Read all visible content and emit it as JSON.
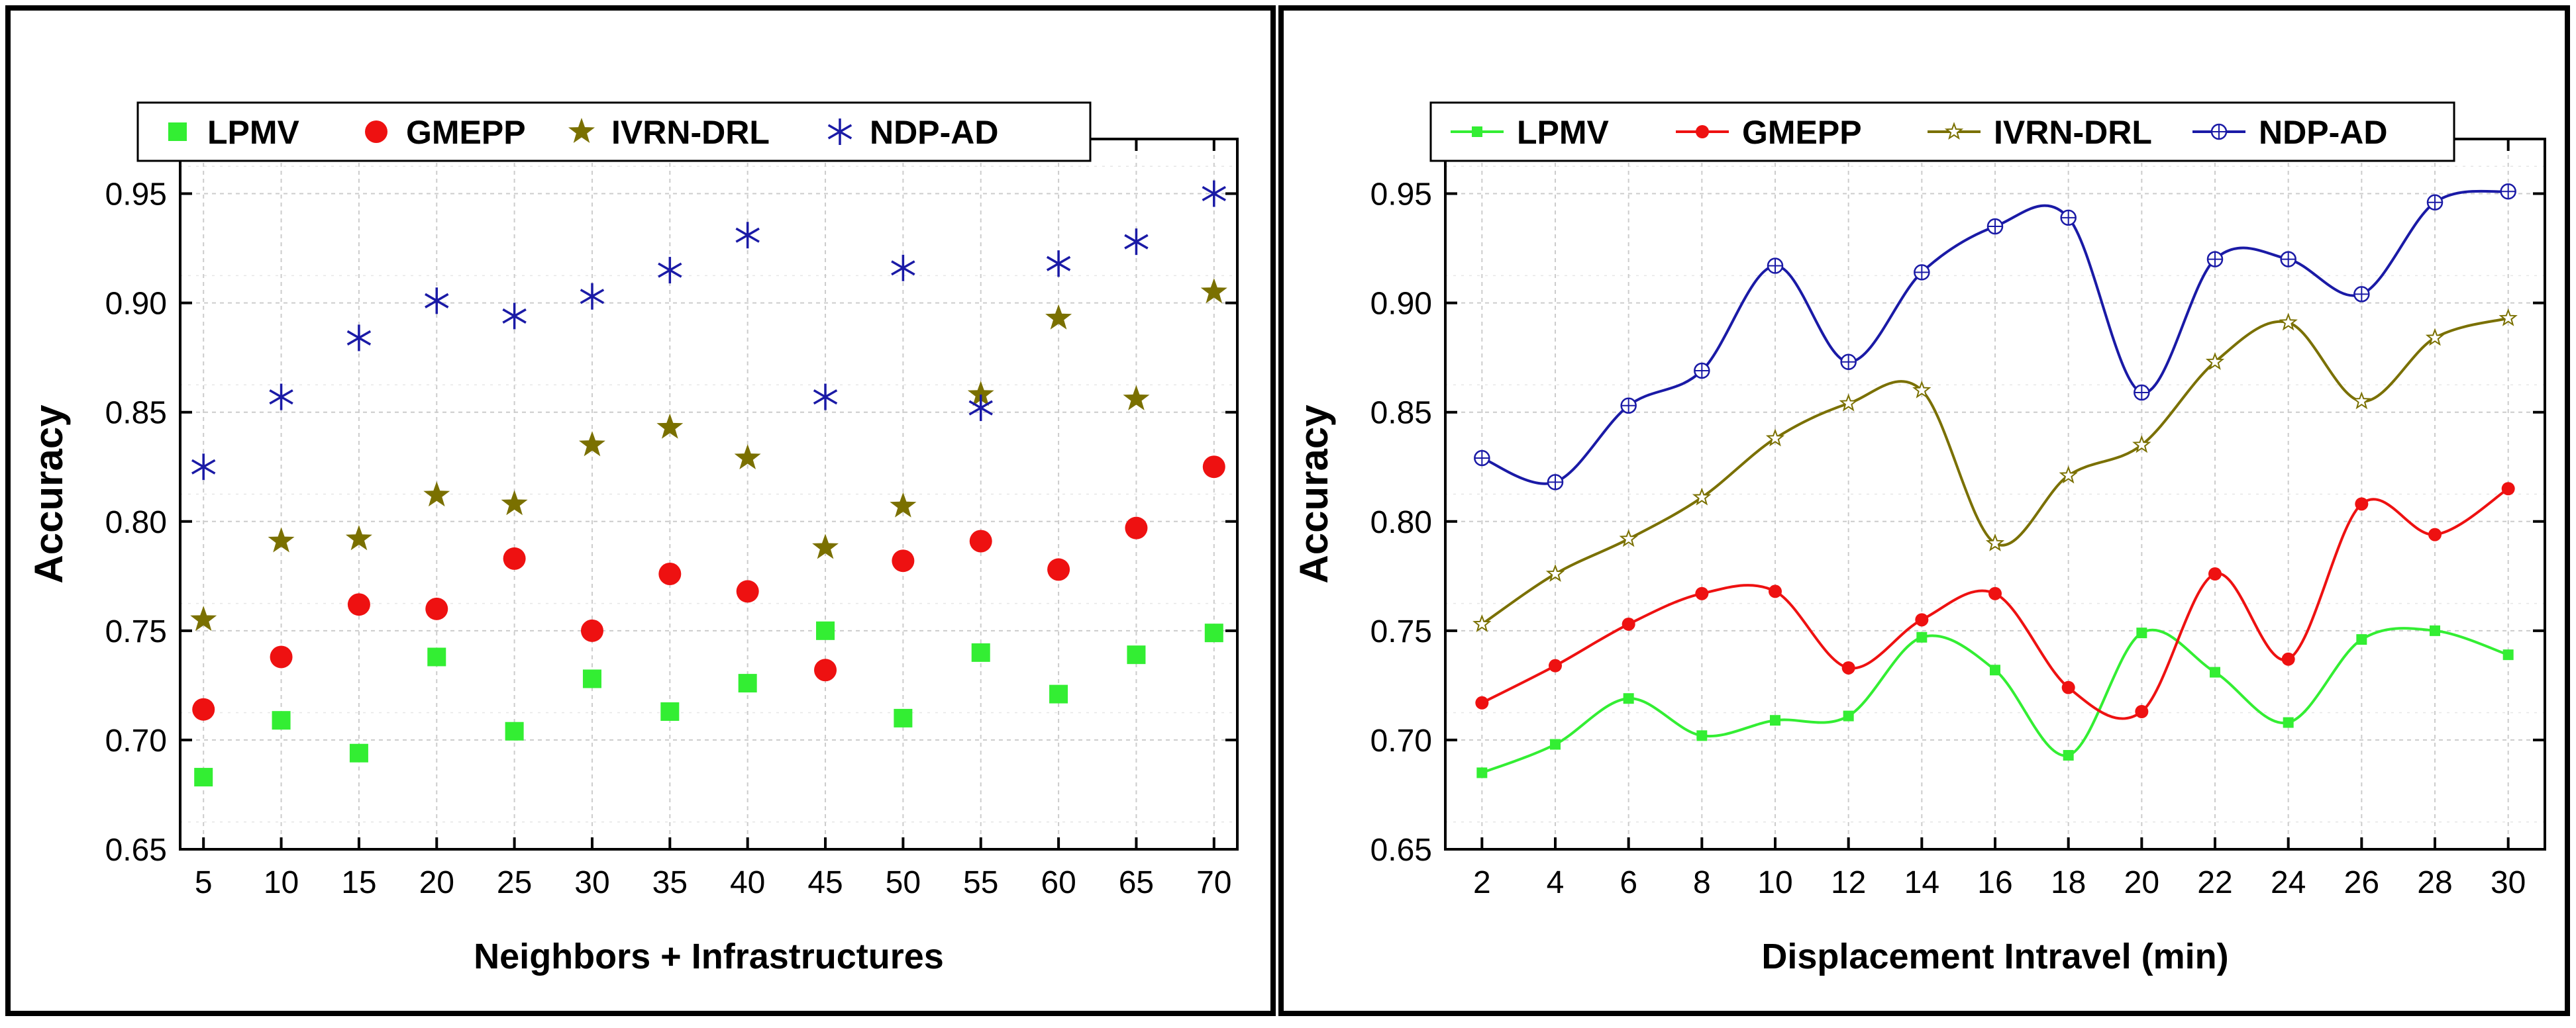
{
  "colors": {
    "LPMV": "#33ee33",
    "GMEPP": "#ee1111",
    "IVRN-DRL": "#7a7000",
    "NDP-AD": "#1a1aa6",
    "grid": "#cccccc"
  },
  "chart_data": [
    {
      "type": "scatter",
      "xlabel": "Neighbors + Infrastructures",
      "ylabel": "Accuracy",
      "x": [
        5,
        10,
        15,
        20,
        25,
        30,
        35,
        40,
        45,
        50,
        55,
        60,
        65,
        70
      ],
      "xticks": [
        "5",
        "10",
        "15",
        "20",
        "25",
        "30",
        "35",
        "40",
        "45",
        "50",
        "55",
        "60",
        "65",
        "70"
      ],
      "yticks": [
        "0.65",
        "0.70",
        "0.75",
        "0.80",
        "0.85",
        "0.90",
        "0.95"
      ],
      "ylim": [
        0.65,
        0.975
      ],
      "grid": true,
      "legend_position": "top",
      "series": [
        {
          "name": "LPMV",
          "marker": "square",
          "values": [
            0.683,
            0.709,
            0.694,
            0.738,
            0.704,
            0.728,
            0.713,
            0.726,
            0.75,
            0.71,
            0.74,
            0.721,
            0.739,
            0.749
          ]
        },
        {
          "name": "GMEPP",
          "marker": "circle",
          "values": [
            0.714,
            0.738,
            0.762,
            0.76,
            0.783,
            0.75,
            0.776,
            0.768,
            0.732,
            0.782,
            0.791,
            0.778,
            0.797,
            0.825
          ]
        },
        {
          "name": "IVRN-DRL",
          "marker": "star",
          "values": [
            0.755,
            0.791,
            0.792,
            0.812,
            0.808,
            0.835,
            0.843,
            0.829,
            0.788,
            0.807,
            0.858,
            0.893,
            0.856,
            0.905
          ]
        },
        {
          "name": "NDP-AD",
          "marker": "asterisk",
          "values": [
            0.825,
            0.857,
            0.884,
            0.901,
            0.894,
            0.903,
            0.915,
            0.931,
            0.857,
            0.916,
            0.852,
            0.918,
            0.928,
            0.95
          ]
        }
      ]
    },
    {
      "type": "line",
      "xlabel": "Displacement Intravel (min)",
      "ylabel": "Accuracy",
      "x": [
        2,
        4,
        6,
        8,
        10,
        12,
        14,
        16,
        18,
        20,
        22,
        24,
        26,
        28,
        30
      ],
      "xticks": [
        "2",
        "4",
        "6",
        "8",
        "10",
        "12",
        "14",
        "16",
        "18",
        "20",
        "22",
        "24",
        "26",
        "28",
        "30"
      ],
      "yticks": [
        "0.65",
        "0.70",
        "0.75",
        "0.80",
        "0.85",
        "0.90",
        "0.95"
      ],
      "ylim": [
        0.65,
        0.975
      ],
      "grid": true,
      "legend_position": "top",
      "series": [
        {
          "name": "LPMV",
          "marker": "square",
          "values": [
            0.685,
            0.698,
            0.719,
            0.702,
            0.709,
            0.711,
            0.747,
            0.732,
            0.693,
            0.749,
            0.731,
            0.708,
            0.746,
            0.75,
            0.739
          ]
        },
        {
          "name": "GMEPP",
          "marker": "circle",
          "values": [
            0.717,
            0.734,
            0.753,
            0.767,
            0.768,
            0.733,
            0.755,
            0.767,
            0.724,
            0.713,
            0.776,
            0.737,
            0.808,
            0.794,
            0.815
          ]
        },
        {
          "name": "IVRN-DRL",
          "marker": "star",
          "values": [
            0.753,
            0.776,
            0.792,
            0.811,
            0.838,
            0.854,
            0.86,
            0.79,
            0.821,
            0.835,
            0.873,
            0.891,
            0.855,
            0.884,
            0.893
          ]
        },
        {
          "name": "NDP-AD",
          "marker": "circle-plus",
          "values": [
            0.829,
            0.818,
            0.853,
            0.869,
            0.917,
            0.873,
            0.914,
            0.935,
            0.939,
            0.859,
            0.92,
            0.92,
            0.904,
            0.946,
            0.951
          ]
        }
      ]
    }
  ]
}
